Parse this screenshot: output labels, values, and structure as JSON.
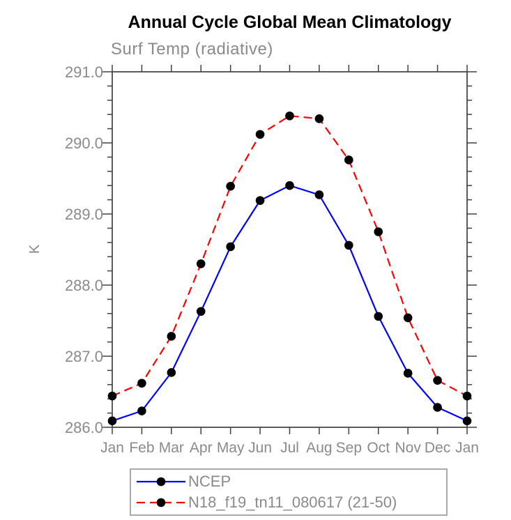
{
  "chart_data": {
    "type": "line",
    "title": "Annual Cycle Global Mean Climatology",
    "subtitle": "Surf Temp (radiative)",
    "ylabel": "K",
    "xlabel": "",
    "categories": [
      "Jan",
      "Feb",
      "Mar",
      "Apr",
      "May",
      "Jun",
      "Jul",
      "Aug",
      "Sep",
      "Oct",
      "Nov",
      "Dec",
      "Jan"
    ],
    "series": [
      {
        "name": "NCEP",
        "color": "#0000ff",
        "line_style": "solid",
        "marker": "filled-circle",
        "marker_color": "#000000",
        "values": [
          286.09,
          286.23,
          286.77,
          287.63,
          288.54,
          289.19,
          289.4,
          289.27,
          288.56,
          287.56,
          286.76,
          286.28,
          286.09
        ]
      },
      {
        "name": "N18_f19_tn11_080617 (21-50)",
        "color": "#ff0000",
        "line_style": "dashed",
        "marker": "filled-circle",
        "marker_color": "#000000",
        "values": [
          286.44,
          286.62,
          287.28,
          288.3,
          289.39,
          290.12,
          290.38,
          290.34,
          289.76,
          288.75,
          287.54,
          286.66,
          286.44
        ]
      }
    ],
    "ylim": [
      286.0,
      291.0
    ],
    "y_major_step": 1.0,
    "y_minor_step": 0.2,
    "y_tick_labels": [
      "286.0",
      "287.0",
      "288.0",
      "289.0",
      "290.0",
      "291.0"
    ],
    "grid": false,
    "legend_position": "bottom"
  }
}
